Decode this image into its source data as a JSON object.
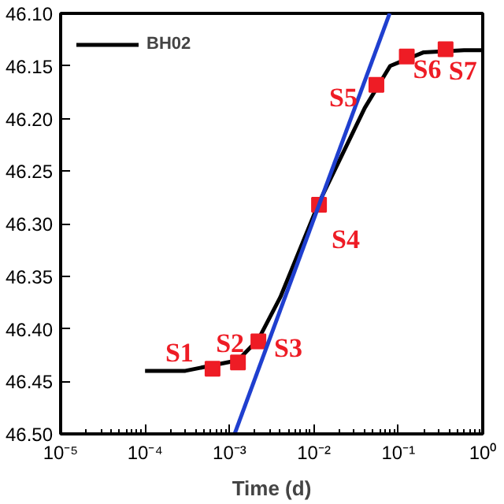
{
  "chart_data": {
    "type": "line",
    "xlabel": "Time (d)",
    "log": "x",
    "xlim": [
      1e-05,
      1
    ],
    "ylim": [
      46.5,
      46.1
    ],
    "xticks": [
      {
        "value": 1e-05,
        "label": "10⁻⁵"
      },
      {
        "value": 0.0001,
        "label": "10⁻⁴"
      },
      {
        "value": 0.001,
        "label": "10⁻³"
      },
      {
        "value": 0.01,
        "label": "10⁻²"
      },
      {
        "value": 0.1,
        "label": "10⁻¹"
      },
      {
        "value": 1,
        "label": "10⁰"
      }
    ],
    "yticks": [
      {
        "value": 46.1,
        "label": "46.10"
      },
      {
        "value": 46.15,
        "label": "46.15"
      },
      {
        "value": 46.2,
        "label": "46.20"
      },
      {
        "value": 46.25,
        "label": "46.25"
      },
      {
        "value": 46.3,
        "label": "46.30"
      },
      {
        "value": 46.35,
        "label": "46.35"
      },
      {
        "value": 46.4,
        "label": "46.40"
      },
      {
        "value": 46.45,
        "label": "46.45"
      },
      {
        "value": 46.5,
        "label": "46.50"
      }
    ],
    "grid": false,
    "legend": "top left",
    "series": [
      {
        "name": "BH02",
        "color": "#000000",
        "x": [
          0.0001,
          0.0003,
          0.00126,
          0.0022,
          0.004,
          0.0115,
          0.04,
          0.08,
          0.2,
          0.6,
          1
        ],
        "values": [
          46.44,
          46.44,
          46.43,
          46.41,
          46.37,
          46.28,
          46.19,
          46.15,
          46.137,
          46.135,
          46.135
        ]
      },
      {
        "type": "scatter",
        "marker": "square",
        "color": "#ee1c25",
        "x": [
          0.00063,
          0.00126,
          0.0022,
          0.0115,
          0.055,
          0.126,
          0.363
        ],
        "values": [
          46.438,
          46.432,
          46.412,
          46.282,
          46.168,
          46.141,
          46.134
        ]
      },
      {
        "type": "line",
        "color": "#1f3fcf",
        "x": [
          0.00115,
          0.079
        ],
        "values": [
          46.5,
          46.1
        ]
      }
    ],
    "annotations": [
      {
        "text": "S1",
        "x": 0.00063,
        "y": 46.438
      },
      {
        "text": "S2",
        "x": 0.00126,
        "y": 46.432
      },
      {
        "text": "S3",
        "x": 0.0022,
        "y": 46.412
      },
      {
        "text": "S4",
        "x": 0.0115,
        "y": 46.282
      },
      {
        "text": "S5",
        "x": 0.055,
        "y": 46.168
      },
      {
        "text": "S6",
        "x": 0.126,
        "y": 46.141
      },
      {
        "text": "S7",
        "x": 0.363,
        "y": 46.134
      }
    ]
  }
}
